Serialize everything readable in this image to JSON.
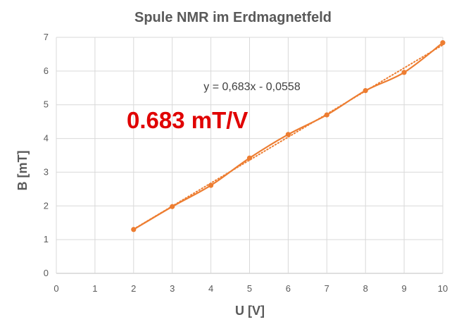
{
  "chart_data": {
    "type": "line",
    "title": "Spule NMR im Erdmagnetfeld",
    "xlabel": "U [V]",
    "ylabel": "B [mT]",
    "xlim": [
      0,
      10
    ],
    "ylim": [
      0,
      7
    ],
    "x_ticks": [
      "0",
      "1",
      "2",
      "3",
      "4",
      "5",
      "6",
      "7",
      "8",
      "9",
      "10"
    ],
    "y_ticks": [
      "0",
      "1",
      "2",
      "3",
      "4",
      "5",
      "6",
      "7"
    ],
    "grid": true,
    "series": [
      {
        "x": [
          2,
          3,
          4,
          5,
          6,
          7,
          8,
          9,
          10
        ],
        "y": [
          1.3,
          1.98,
          2.61,
          3.42,
          4.12,
          4.7,
          5.42,
          5.96,
          6.84
        ],
        "color": "#ed7d31",
        "markers": true
      }
    ],
    "trendline": {
      "type": "linear",
      "slope": 0.683,
      "intercept": -0.0558,
      "x_range": [
        2,
        10
      ],
      "style": "dotted",
      "color": "#ed7d31"
    },
    "annotations": {
      "equation": "y = 0,683x - 0,0558",
      "slope_label": "0.683 mT/V",
      "slope_label_color": "#e00000"
    }
  }
}
